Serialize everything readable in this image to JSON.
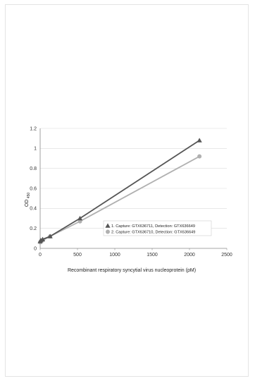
{
  "chart_data": {
    "type": "line",
    "title": "",
    "xlabel": "Recombinant respiratory syncytial virus nucleoprotein (pM)",
    "ylabel": "OD",
    "ylabel_sub": "450",
    "xlim": [
      0,
      2500
    ],
    "ylim": [
      0,
      1.2
    ],
    "x_ticks": [
      0,
      500,
      1000,
      1500,
      2000,
      2500
    ],
    "y_ticks": [
      0,
      0.2,
      0.4,
      0.6,
      0.8,
      1,
      1.2
    ],
    "x_tick_labels": [
      "0",
      "500",
      "1000",
      "1500",
      "2000",
      "2500"
    ],
    "y_tick_labels": [
      "0",
      "0.2",
      "0.4",
      "0.6",
      "0.8",
      "1",
      "1.2"
    ],
    "grid": "horizontal",
    "legend_position": "bottom-right",
    "series": [
      {
        "name": "1. Capture: GTX636711, Detection: GTX636649",
        "marker": "triangle",
        "color": "#555555",
        "x": [
          0,
          8.3,
          33.3,
          133.3,
          533.3,
          2133.3
        ],
        "y": [
          0.07,
          0.08,
          0.09,
          0.12,
          0.3,
          1.08
        ]
      },
      {
        "name": "2. Capture: GTX636710, Detection: GTX636649",
        "marker": "circle",
        "color": "#b0b0b0",
        "x": [
          0,
          8.3,
          33.3,
          133.3,
          533.3,
          2133.3
        ],
        "y": [
          0.06,
          0.07,
          0.08,
          0.12,
          0.27,
          0.92
        ]
      }
    ]
  }
}
